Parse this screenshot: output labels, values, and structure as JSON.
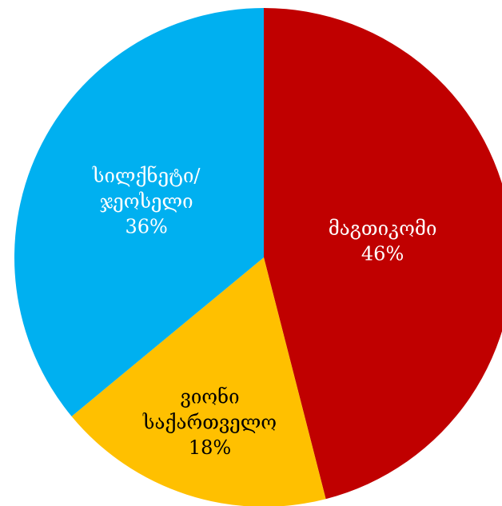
{
  "chart_data": {
    "type": "pie",
    "categories": [
      "მაგთიკომი",
      "ვიონი\nსაქართველო",
      "სილქნეტი/\nჯეოსელი"
    ],
    "values": [
      46,
      18,
      36
    ],
    "value_labels": [
      "46%",
      "18%",
      "36%"
    ],
    "colors": [
      "#c00000",
      "#ffc000",
      "#00b0f0"
    ]
  }
}
